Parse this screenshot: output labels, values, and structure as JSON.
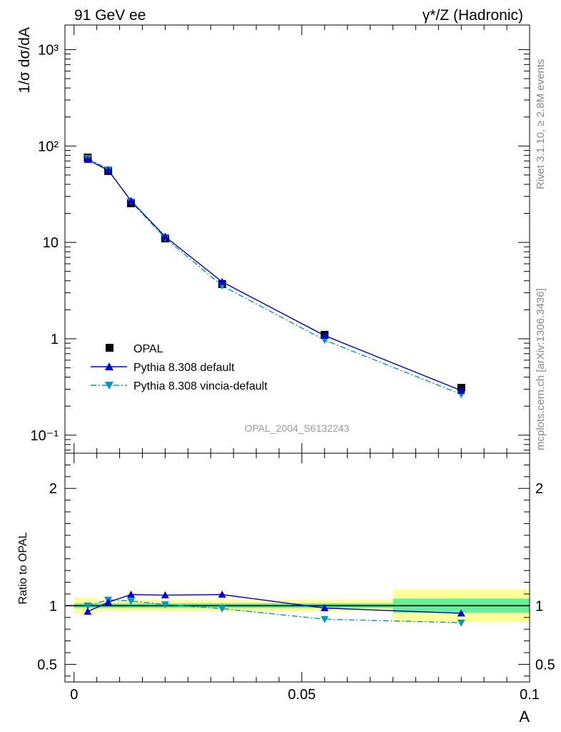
{
  "header": {
    "left": "91 GeV ee",
    "right": "γ*/Z (Hadronic)"
  },
  "side_labels": {
    "top": "Rivet 3.1.10, ≥ 2.8M events",
    "bottom": "mcplots.cern.ch [arXiv:1306.3436]"
  },
  "analysis_tag": "OPAL_2004_S6132243",
  "colors": {
    "data": "#000000",
    "pythia_default": "#0000dd",
    "pythia_vincia": "#0099bb",
    "band_outer": "#ffff99",
    "band_inner": "#66ee99"
  },
  "chart_data": [
    {
      "type": "scatter",
      "panel": "main",
      "ylabel": "1/σ dσ/dA",
      "yscale": "log",
      "ylim": [
        0.065,
        1800
      ],
      "xlim": [
        -0.002,
        0.1
      ],
      "y_ticks": [
        "10⁻¹",
        "1",
        "10",
        "10²",
        "10³"
      ],
      "legend_placement": "bottom-left",
      "series": [
        {
          "name": "OPAL",
          "marker": "square",
          "x": [
            0.003,
            0.0075,
            0.0125,
            0.02,
            0.0325,
            0.055,
            0.085
          ],
          "values": [
            76,
            55,
            25.5,
            11,
            3.7,
            1.1,
            0.31
          ]
        },
        {
          "name": "Pythia 8.308 default",
          "marker": "triangle-up",
          "line": "solid",
          "x": [
            0.003,
            0.0075,
            0.0125,
            0.02,
            0.0325,
            0.055,
            0.085
          ],
          "values": [
            72,
            56,
            27,
            11.5,
            3.9,
            1.08,
            0.29
          ]
        },
        {
          "name": "Pythia 8.308 vincia-default",
          "marker": "triangle-down",
          "line": "dashdot",
          "x": [
            0.003,
            0.0075,
            0.0125,
            0.02,
            0.0325,
            0.055,
            0.085
          ],
          "values": [
            75,
            57,
            26.5,
            11.1,
            3.55,
            0.97,
            0.265
          ]
        }
      ]
    },
    {
      "type": "line",
      "panel": "ratio",
      "ylabel": "Ratio to OPAL",
      "xlabel": "A",
      "ylim": [
        0.35,
        2.3
      ],
      "xlim": [
        -0.002,
        0.1
      ],
      "x_ticks": [
        "0",
        "0.05",
        "0.1"
      ],
      "y_ticks": [
        "0.5",
        "1",
        "2"
      ],
      "reference": 1,
      "band": {
        "x_edges": [
          0,
          0.005,
          0.01,
          0.015,
          0.025,
          0.04,
          0.07,
          0.1
        ],
        "outer": [
          0.07,
          0.045,
          0.05,
          0.05,
          0.05,
          0.05,
          0.14
        ],
        "inner": [
          0.02,
          0.02,
          0.02,
          0.02,
          0.02,
          0.02,
          0.06
        ]
      },
      "series": [
        {
          "name": "Pythia 8.308 default",
          "x": [
            0.003,
            0.0075,
            0.0125,
            0.02,
            0.0325,
            0.055,
            0.085
          ],
          "values": [
            0.95,
            1.03,
            1.095,
            1.09,
            1.095,
            0.98,
            0.935
          ]
        },
        {
          "name": "Pythia 8.308 vincia-default",
          "x": [
            0.003,
            0.0075,
            0.0125,
            0.02,
            0.0325,
            0.055,
            0.085
          ],
          "values": [
            1.0,
            1.05,
            1.04,
            1.01,
            0.975,
            0.885,
            0.855
          ]
        }
      ]
    }
  ]
}
